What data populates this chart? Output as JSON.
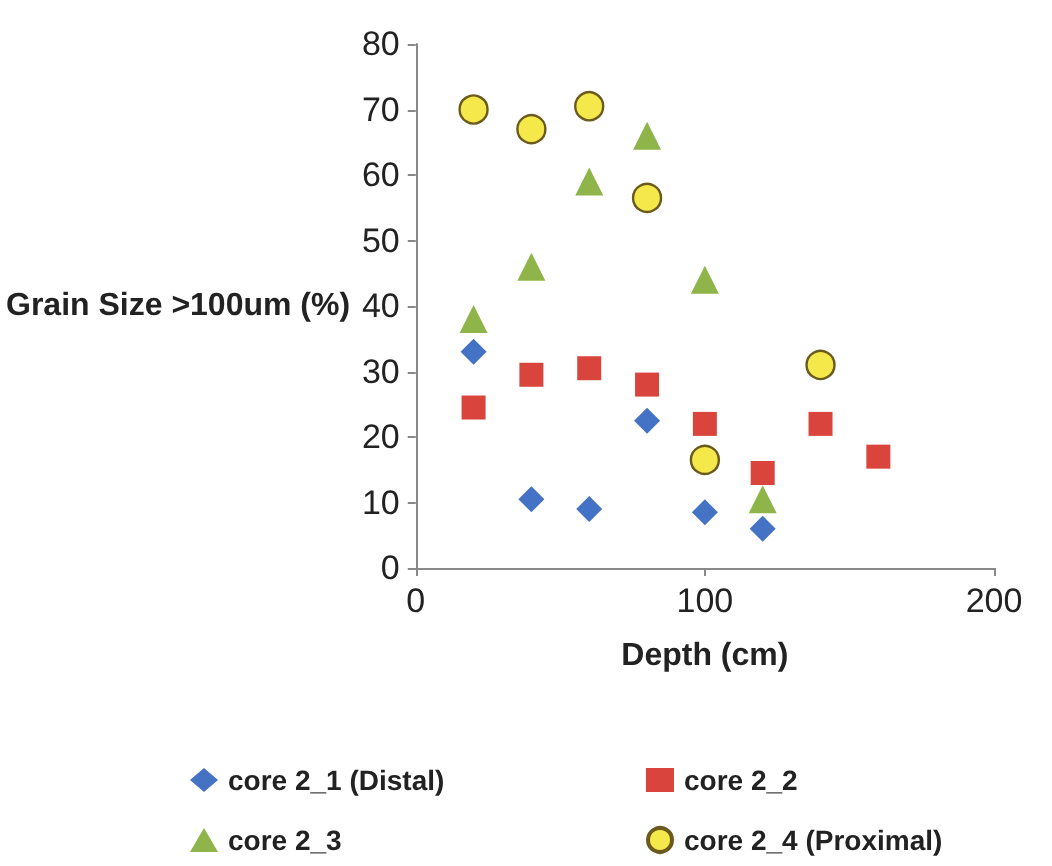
{
  "chart_data": {
    "type": "scatter",
    "xlabel": "Depth (cm)",
    "ylabel": "Grain Size >100um (%)",
    "xlim": [
      0,
      200
    ],
    "xticks": [
      0,
      100,
      200
    ],
    "ylim": [
      0,
      80
    ],
    "yticks": [
      0,
      10,
      20,
      30,
      40,
      50,
      60,
      70,
      80
    ],
    "grid": false,
    "legend": "bottom",
    "series": [
      {
        "name": "core 2_1 (Distal)",
        "color": "#4472c4",
        "marker": "diamond",
        "x": [
          20,
          40,
          60,
          80,
          100,
          120
        ],
        "values": [
          33,
          10.5,
          9,
          22.5,
          8.5,
          6
        ]
      },
      {
        "name": "core 2_2",
        "color": "#d9453d",
        "marker": "square",
        "x": [
          20,
          40,
          60,
          80,
          100,
          120,
          140,
          160
        ],
        "values": [
          24.5,
          29.5,
          30.5,
          28,
          22,
          14.5,
          22,
          17
        ]
      },
      {
        "name": "core 2_3",
        "color": "#8fb54a",
        "marker": "triangle",
        "x": [
          20,
          40,
          60,
          80,
          100,
          120
        ],
        "values": [
          38,
          46,
          59,
          66,
          44,
          10.5
        ]
      },
      {
        "name": "core 2_4 (Proximal)",
        "color": "#f5e84a",
        "marker": "circle",
        "x": [
          20,
          40,
          60,
          80,
          100,
          140
        ],
        "values": [
          70,
          67,
          70.5,
          56.5,
          16.5,
          31
        ]
      }
    ]
  }
}
